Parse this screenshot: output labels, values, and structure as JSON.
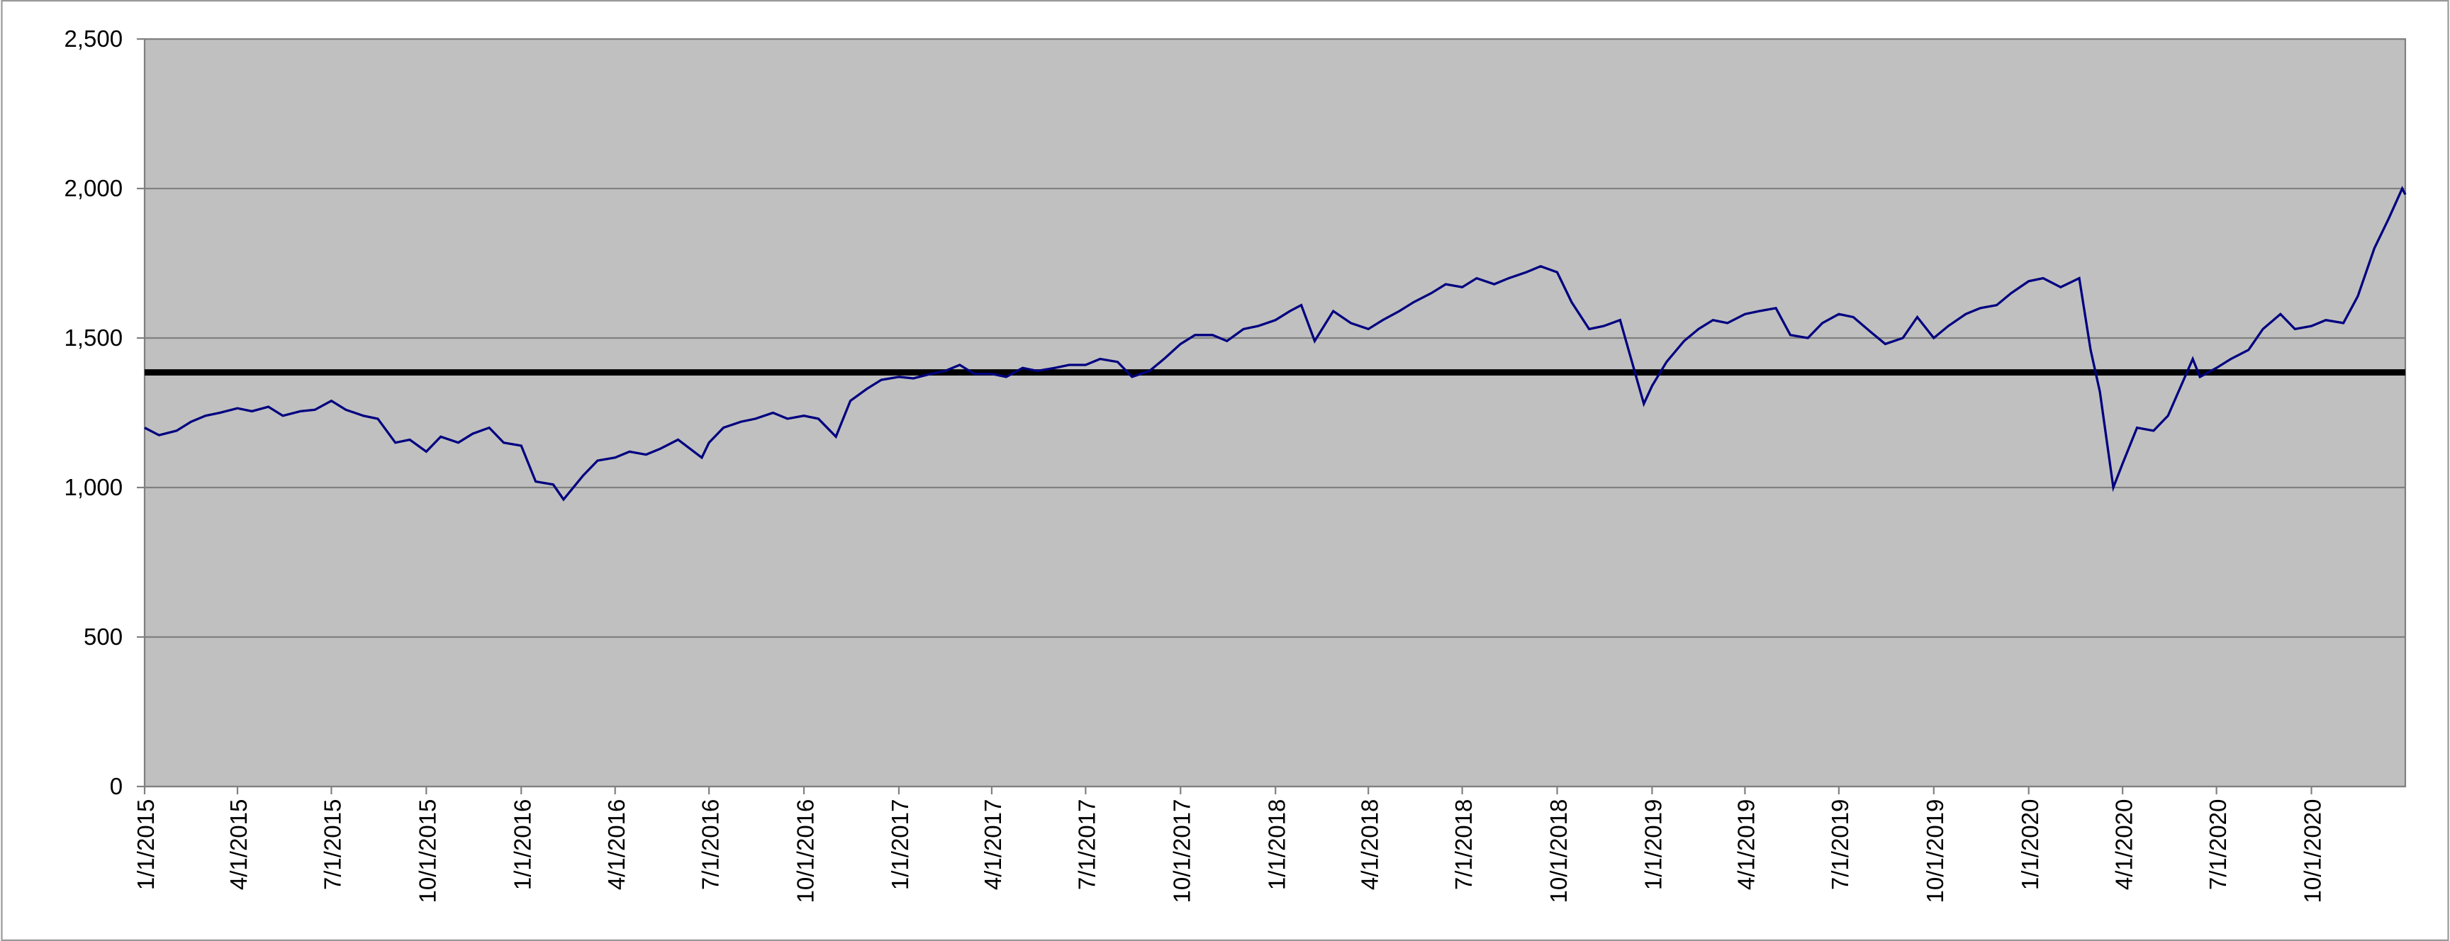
{
  "chart_data": {
    "type": "line",
    "x": [
      "2015-01-01",
      "2015-01-15",
      "2015-02-01",
      "2015-02-15",
      "2015-03-01",
      "2015-03-15",
      "2015-04-01",
      "2015-04-15",
      "2015-05-01",
      "2015-05-15",
      "2015-06-01",
      "2015-06-15",
      "2015-07-01",
      "2015-07-15",
      "2015-08-01",
      "2015-08-15",
      "2015-09-01",
      "2015-09-15",
      "2015-10-01",
      "2015-10-15",
      "2015-11-01",
      "2015-11-15",
      "2015-12-01",
      "2015-12-15",
      "2016-01-01",
      "2016-01-15",
      "2016-02-01",
      "2016-02-11",
      "2016-03-01",
      "2016-03-15",
      "2016-04-01",
      "2016-04-15",
      "2016-05-01",
      "2016-05-15",
      "2016-06-01",
      "2016-06-24",
      "2016-07-01",
      "2016-07-15",
      "2016-08-01",
      "2016-08-15",
      "2016-09-01",
      "2016-09-15",
      "2016-10-01",
      "2016-10-15",
      "2016-11-01",
      "2016-11-15",
      "2016-12-01",
      "2016-12-15",
      "2017-01-01",
      "2017-01-15",
      "2017-02-01",
      "2017-02-15",
      "2017-03-01",
      "2017-03-15",
      "2017-04-01",
      "2017-04-15",
      "2017-05-01",
      "2017-05-15",
      "2017-06-01",
      "2017-06-15",
      "2017-07-01",
      "2017-07-15",
      "2017-08-01",
      "2017-08-15",
      "2017-09-01",
      "2017-09-15",
      "2017-10-01",
      "2017-10-15",
      "2017-11-01",
      "2017-11-15",
      "2017-12-01",
      "2017-12-15",
      "2018-01-01",
      "2018-01-15",
      "2018-01-26",
      "2018-02-08",
      "2018-02-26",
      "2018-03-15",
      "2018-04-01",
      "2018-04-15",
      "2018-05-01",
      "2018-05-15",
      "2018-06-01",
      "2018-06-15",
      "2018-07-01",
      "2018-07-15",
      "2018-08-01",
      "2018-08-15",
      "2018-09-01",
      "2018-09-15",
      "2018-10-01",
      "2018-10-15",
      "2018-11-01",
      "2018-11-15",
      "2018-12-01",
      "2018-12-24",
      "2019-01-01",
      "2019-01-15",
      "2019-02-01",
      "2019-02-15",
      "2019-03-01",
      "2019-03-15",
      "2019-04-01",
      "2019-04-15",
      "2019-05-01",
      "2019-05-15",
      "2019-06-01",
      "2019-06-15",
      "2019-07-01",
      "2019-07-15",
      "2019-08-01",
      "2019-08-15",
      "2019-09-01",
      "2019-09-15",
      "2019-10-01",
      "2019-10-15",
      "2019-11-01",
      "2019-11-15",
      "2019-12-01",
      "2019-12-15",
      "2020-01-01",
      "2020-01-15",
      "2020-02-01",
      "2020-02-19",
      "2020-03-01",
      "2020-03-10",
      "2020-03-23",
      "2020-04-01",
      "2020-04-15",
      "2020-05-01",
      "2020-05-15",
      "2020-06-08",
      "2020-06-15",
      "2020-07-01",
      "2020-07-15",
      "2020-08-01",
      "2020-08-15",
      "2020-09-01",
      "2020-09-15",
      "2020-10-01",
      "2020-10-15",
      "2020-11-01",
      "2020-11-15",
      "2020-12-01",
      "2020-12-15",
      "2020-12-28",
      "2020-12-31"
    ],
    "series": [
      {
        "color": "#000080",
        "values": [
          1200,
          1175,
          1190,
          1220,
          1240,
          1250,
          1265,
          1255,
          1270,
          1240,
          1255,
          1260,
          1290,
          1260,
          1240,
          1230,
          1150,
          1160,
          1120,
          1170,
          1150,
          1180,
          1200,
          1150,
          1140,
          1020,
          1010,
          960,
          1040,
          1090,
          1100,
          1120,
          1110,
          1130,
          1160,
          1100,
          1150,
          1200,
          1220,
          1230,
          1250,
          1230,
          1240,
          1230,
          1170,
          1290,
          1330,
          1360,
          1370,
          1365,
          1380,
          1390,
          1410,
          1380,
          1380,
          1370,
          1400,
          1390,
          1400,
          1410,
          1410,
          1430,
          1420,
          1370,
          1390,
          1430,
          1480,
          1510,
          1510,
          1490,
          1530,
          1540,
          1560,
          1590,
          1610,
          1490,
          1590,
          1550,
          1530,
          1560,
          1590,
          1620,
          1650,
          1680,
          1670,
          1700,
          1680,
          1700,
          1720,
          1740,
          1720,
          1620,
          1530,
          1540,
          1560,
          1280,
          1340,
          1420,
          1490,
          1530,
          1560,
          1550,
          1580,
          1590,
          1600,
          1510,
          1500,
          1550,
          1580,
          1570,
          1520,
          1480,
          1500,
          1570,
          1500,
          1540,
          1580,
          1600,
          1610,
          1650,
          1690,
          1700,
          1670,
          1700,
          1460,
          1320,
          1000,
          1080,
          1200,
          1190,
          1240,
          1430,
          1370,
          1400,
          1430,
          1460,
          1530,
          1580,
          1530,
          1540,
          1560,
          1550,
          1640,
          1800,
          1900,
          2000,
          1980
        ]
      }
    ],
    "reference_line": {
      "value": 1385,
      "color": "#000000"
    },
    "xlim": [
      "2015-01-01",
      "2020-12-31"
    ],
    "xticks": [
      {
        "value": "2015-01-01",
        "label": "1/1/2015"
      },
      {
        "value": "2015-04-01",
        "label": "4/1/2015"
      },
      {
        "value": "2015-07-01",
        "label": "7/1/2015"
      },
      {
        "value": "2015-10-01",
        "label": "10/1/2015"
      },
      {
        "value": "2016-01-01",
        "label": "1/1/2016"
      },
      {
        "value": "2016-04-01",
        "label": "4/1/2016"
      },
      {
        "value": "2016-07-01",
        "label": "7/1/2016"
      },
      {
        "value": "2016-10-01",
        "label": "10/1/2016"
      },
      {
        "value": "2017-01-01",
        "label": "1/1/2017"
      },
      {
        "value": "2017-04-01",
        "label": "4/1/2017"
      },
      {
        "value": "2017-07-01",
        "label": "7/1/2017"
      },
      {
        "value": "2017-10-01",
        "label": "10/1/2017"
      },
      {
        "value": "2018-01-01",
        "label": "1/1/2018"
      },
      {
        "value": "2018-04-01",
        "label": "4/1/2018"
      },
      {
        "value": "2018-07-01",
        "label": "7/1/2018"
      },
      {
        "value": "2018-10-01",
        "label": "10/1/2018"
      },
      {
        "value": "2019-01-01",
        "label": "1/1/2019"
      },
      {
        "value": "2019-04-01",
        "label": "4/1/2019"
      },
      {
        "value": "2019-07-01",
        "label": "7/1/2019"
      },
      {
        "value": "2019-10-01",
        "label": "10/1/2019"
      },
      {
        "value": "2020-01-01",
        "label": "1/1/2020"
      },
      {
        "value": "2020-04-01",
        "label": "4/1/2020"
      },
      {
        "value": "2020-07-01",
        "label": "7/1/2020"
      },
      {
        "value": "2020-10-01",
        "label": "10/1/2020"
      }
    ],
    "ylim": [
      0,
      2500
    ],
    "yticks": [
      0,
      500,
      {
        "value": 1000,
        "label": "1,000"
      },
      {
        "value": 1500,
        "label": "1,500"
      },
      {
        "value": 2000,
        "label": "2,000"
      },
      {
        "value": 2500,
        "label": "2,500"
      }
    ],
    "grid": true,
    "plot_background": "#c0c0c0"
  }
}
